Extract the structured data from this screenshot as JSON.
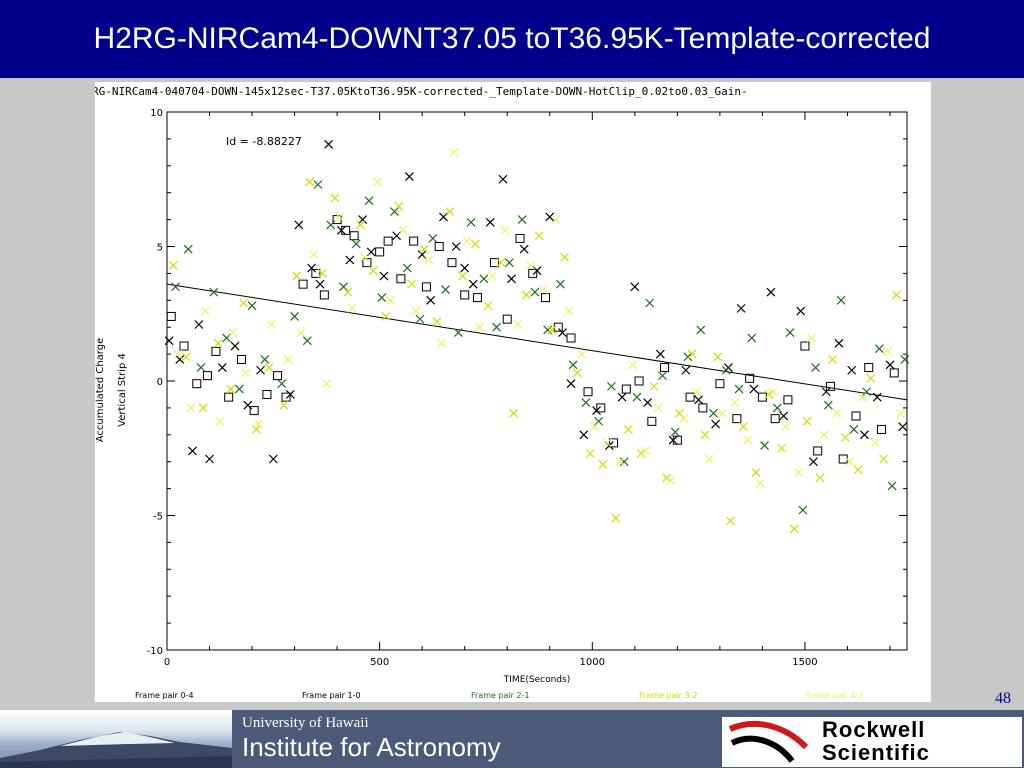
{
  "slide": {
    "title": "H2RG-NIRCam4-DOWNT37.05 toT36.95K-Template-corrected",
    "page_number": "48"
  },
  "footer": {
    "university": "University of Hawaii",
    "institute": "Institute for Astronomy",
    "logo_line1": "Rockwell",
    "logo_line2": "Scientific"
  },
  "colors": {
    "title_bg": "#00008b",
    "black_series": "#000000",
    "gray_series": "#3c3c50",
    "green_series": "#1e6e1e",
    "yellow_series": "#d8d800",
    "light_yellow_series": "#f0f060"
  },
  "chart_data": {
    "type": "scatter",
    "title": "RG-NIRCam4-040704-DOWN-145x12sec-T37.05KtoT36.95K-corrected-_Template-DOWN-HotClip_0.02to0.03_Gain-",
    "xlabel": "TIME(Seconds)",
    "ylabel": "Accumulated Charge",
    "ylabel2": "Vertical Strip 4",
    "annotation": "Id = -8.88227",
    "xlim": [
      0,
      1740
    ],
    "ylim": [
      -10,
      10
    ],
    "xticks": [
      "0",
      "500",
      "1000",
      "1500"
    ],
    "yticks": [
      "10",
      "5",
      "0",
      "-5",
      "-10"
    ],
    "legend": [
      "Frame pair 0-4",
      "Frame pair 1-0",
      "Frame pair 2-1",
      "Frame pair 3-2",
      "Frame pair 4-3"
    ],
    "fit_line": {
      "x": [
        0,
        1740
      ],
      "y": [
        3.6,
        -0.7
      ]
    },
    "series": [
      {
        "name": "Frame pair 0-4",
        "marker": "x",
        "color": "#000000",
        "x": [
          5,
          30,
          60,
          75,
          100,
          130,
          160,
          190,
          220,
          250,
          290,
          310,
          340,
          360,
          380,
          410,
          430,
          460,
          480,
          510,
          540,
          570,
          600,
          620,
          650,
          680,
          700,
          720,
          760,
          790,
          810,
          840,
          870,
          900,
          930,
          950,
          980,
          1010,
          1040,
          1070,
          1100,
          1130,
          1160,
          1190,
          1220,
          1250,
          1290,
          1320,
          1350,
          1380,
          1420,
          1450,
          1490,
          1520,
          1550,
          1580,
          1610,
          1640,
          1670,
          1700,
          1730
        ],
        "y": [
          1.5,
          0.8,
          -2.6,
          2.1,
          -2.9,
          0.5,
          1.3,
          -0.9,
          0.4,
          -2.9,
          -0.5,
          5.8,
          4.2,
          3.6,
          8.8,
          5.6,
          4.5,
          6.0,
          4.8,
          3.9,
          5.4,
          7.6,
          4.7,
          3.0,
          6.1,
          5.0,
          4.2,
          3.6,
          5.9,
          7.5,
          3.8,
          4.9,
          4.1,
          6.1,
          1.8,
          -0.1,
          -2.0,
          -1.1,
          -2.4,
          -0.6,
          3.5,
          -0.8,
          1.0,
          -2.2,
          0.4,
          -0.7,
          -1.6,
          0.5,
          2.7,
          -0.3,
          3.3,
          -1.3,
          2.6,
          -3.0,
          -0.4,
          1.4,
          0.4,
          -2.0,
          -0.6,
          0.6,
          -1.7
        ]
      },
      {
        "name": "Frame pair 1-0",
        "marker": "square",
        "color": "#000000",
        "x": [
          10,
          40,
          70,
          95,
          115,
          145,
          175,
          205,
          235,
          260,
          280,
          320,
          350,
          370,
          400,
          420,
          440,
          470,
          500,
          520,
          550,
          580,
          610,
          640,
          670,
          700,
          730,
          770,
          800,
          830,
          860,
          890,
          920,
          950,
          990,
          1020,
          1050,
          1080,
          1110,
          1140,
          1170,
          1200,
          1230,
          1260,
          1300,
          1340,
          1370,
          1400,
          1430,
          1460,
          1500,
          1530,
          1560,
          1590,
          1620,
          1650,
          1680,
          1710
        ],
        "y": [
          2.4,
          1.3,
          -0.1,
          0.2,
          1.1,
          -0.6,
          0.8,
          -1.1,
          -0.5,
          0.2,
          -0.6,
          3.6,
          4.0,
          3.2,
          6.0,
          5.6,
          5.4,
          4.4,
          4.8,
          5.2,
          3.8,
          5.2,
          3.5,
          5.0,
          4.4,
          3.2,
          3.1,
          4.4,
          2.3,
          5.3,
          4.0,
          3.1,
          2.0,
          1.6,
          -0.4,
          -1.0,
          -2.3,
          -0.3,
          0.0,
          -1.5,
          0.5,
          -2.2,
          -0.6,
          -1.0,
          -0.1,
          -1.4,
          0.1,
          -0.6,
          -1.4,
          -0.7,
          1.3,
          -2.6,
          -0.2,
          -2.9,
          -1.3,
          0.5,
          -1.8,
          0.3
        ]
      },
      {
        "name": "Frame pair 2-1",
        "marker": "x",
        "color": "#1e6e1e",
        "x": [
          20,
          50,
          80,
          110,
          140,
          170,
          200,
          230,
          270,
          300,
          330,
          355,
          385,
          415,
          445,
          475,
          505,
          535,
          565,
          595,
          625,
          655,
          685,
          715,
          745,
          775,
          805,
          835,
          865,
          895,
          925,
          955,
          985,
          1015,
          1045,
          1075,
          1105,
          1135,
          1165,
          1195,
          1225,
          1255,
          1285,
          1315,
          1345,
          1375,
          1405,
          1435,
          1465,
          1495,
          1525,
          1555,
          1585,
          1615,
          1645,
          1675,
          1705,
          1735
        ],
        "y": [
          3.5,
          4.9,
          0.5,
          3.3,
          1.6,
          -0.3,
          2.8,
          0.8,
          -0.1,
          2.4,
          1.5,
          7.3,
          5.8,
          3.5,
          5.1,
          6.7,
          3.1,
          6.3,
          4.2,
          2.3,
          5.3,
          3.4,
          1.8,
          5.9,
          3.8,
          2.0,
          4.4,
          6.0,
          3.3,
          1.9,
          3.6,
          0.6,
          -0.8,
          -1.5,
          -0.2,
          -3.0,
          -0.6,
          2.9,
          0.2,
          -1.9,
          0.9,
          1.9,
          -1.2,
          0.4,
          -0.3,
          1.6,
          -2.4,
          -1.0,
          1.8,
          -4.8,
          0.5,
          -0.9,
          3.0,
          -1.8,
          -0.4,
          1.2,
          -3.9,
          0.8
        ]
      },
      {
        "name": "Frame pair 3-2",
        "marker": "x",
        "color": "#d8d800",
        "x": [
          15,
          45,
          85,
          120,
          150,
          180,
          210,
          240,
          275,
          305,
          335,
          365,
          395,
          425,
          455,
          485,
          515,
          545,
          575,
          605,
          635,
          665,
          695,
          725,
          755,
          785,
          815,
          845,
          875,
          905,
          935,
          965,
          995,
          1025,
          1055,
          1085,
          1115,
          1145,
          1175,
          1205,
          1235,
          1265,
          1295,
          1325,
          1355,
          1385,
          1415,
          1445,
          1475,
          1505,
          1535,
          1565,
          1595,
          1625,
          1655,
          1685,
          1715
        ],
        "y": [
          4.3,
          0.9,
          -1.0,
          1.4,
          -0.3,
          2.9,
          -1.8,
          0.5,
          -0.9,
          3.9,
          7.4,
          4.0,
          6.8,
          3.3,
          5.8,
          4.1,
          2.4,
          6.5,
          3.6,
          4.9,
          2.2,
          6.3,
          3.9,
          5.1,
          2.8,
          4.4,
          -1.2,
          3.2,
          5.4,
          1.9,
          4.6,
          0.3,
          -2.7,
          -3.1,
          -5.1,
          -1.8,
          -2.7,
          -0.2,
          -3.6,
          -1.2,
          1.0,
          -2.0,
          0.9,
          -5.2,
          -1.7,
          -3.4,
          -0.5,
          -2.5,
          -5.5,
          -1.5,
          -3.6,
          0.8,
          -2.1,
          -3.3,
          0.1,
          -2.9,
          3.2
        ]
      },
      {
        "name": "Frame pair 4-3",
        "marker": "x",
        "color": "#f0f060",
        "x": [
          25,
          55,
          90,
          125,
          155,
          185,
          215,
          245,
          285,
          315,
          345,
          375,
          405,
          435,
          465,
          495,
          525,
          555,
          585,
          615,
          645,
          675,
          705,
          735,
          765,
          795,
          825,
          855,
          885,
          915,
          945,
          975,
          1005,
          1035,
          1065,
          1095,
          1125,
          1155,
          1185,
          1215,
          1245,
          1275,
          1305,
          1335,
          1365,
          1395,
          1425,
          1455,
          1485,
          1515,
          1545,
          1575,
          1605,
          1635,
          1665,
          1695,
          1725
        ],
        "y": [
          1.0,
          -1.0,
          2.6,
          -1.5,
          1.8,
          0.3,
          -1.6,
          2.1,
          0.8,
          1.8,
          4.7,
          -0.1,
          6.1,
          2.7,
          4.6,
          7.4,
          3.0,
          5.6,
          2.6,
          4.5,
          1.4,
          8.5,
          5.2,
          2.0,
          3.9,
          5.6,
          2.1,
          4.3,
          3.4,
          6.0,
          2.6,
          1.0,
          -1.7,
          -2.3,
          -3.0,
          0.6,
          -2.6,
          -1.0,
          -3.7,
          -1.4,
          -0.4,
          -2.9,
          -1.2,
          -0.8,
          -2.2,
          -3.8,
          -0.4,
          -1.7,
          -3.4,
          1.6,
          -2.0,
          -1.2,
          -3.0,
          -0.6,
          -2.3,
          1.1,
          -1.2
        ]
      }
    ]
  }
}
